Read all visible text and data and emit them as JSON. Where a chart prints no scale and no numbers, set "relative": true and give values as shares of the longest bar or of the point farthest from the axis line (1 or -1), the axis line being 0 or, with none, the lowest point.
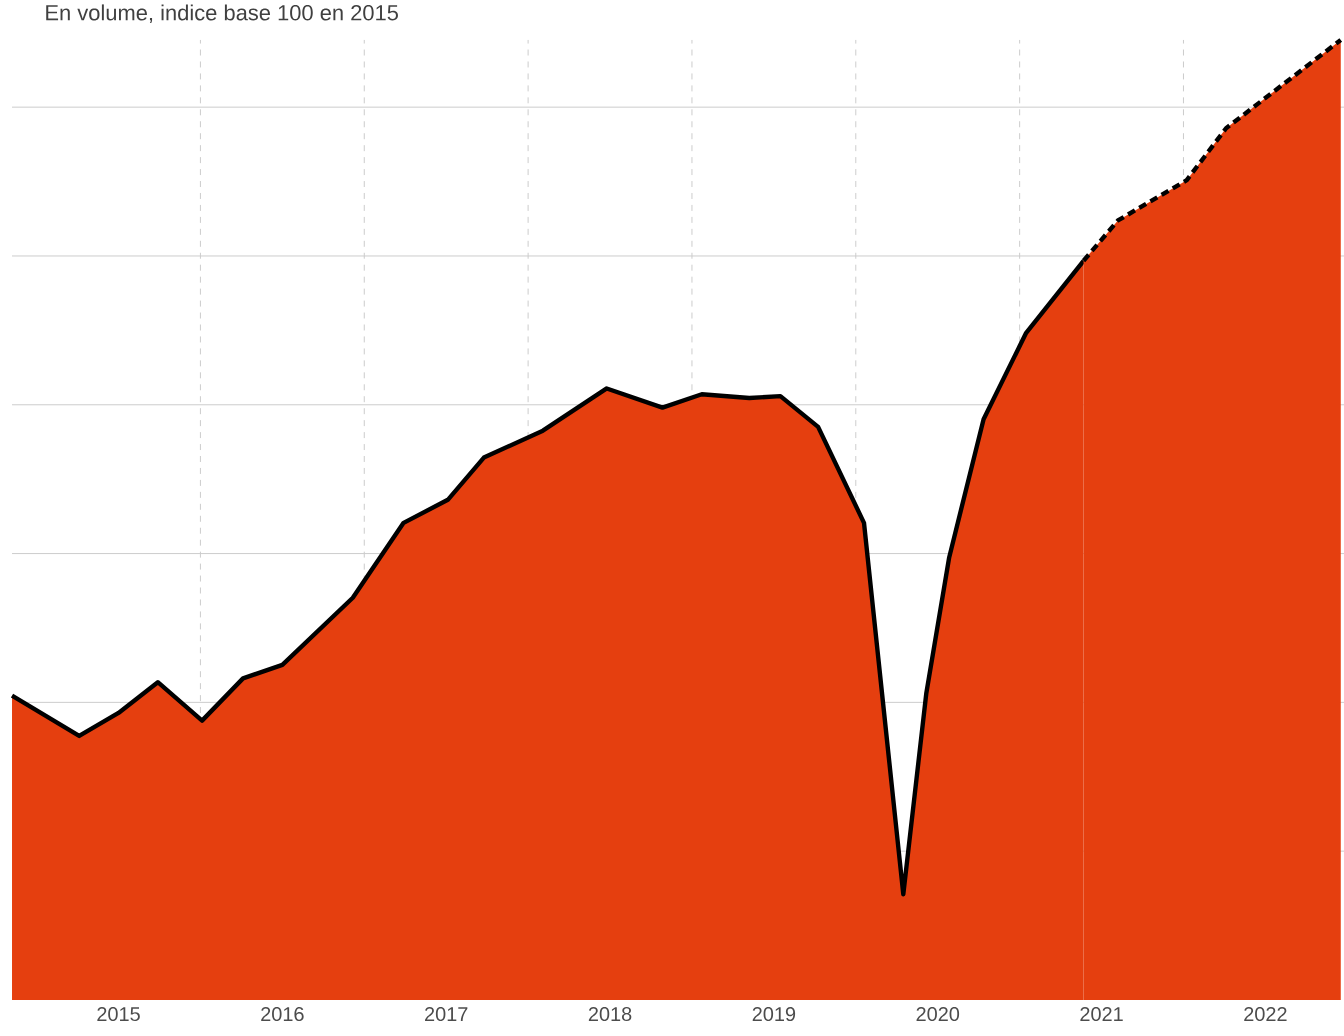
{
  "chart_data": {
    "type": "area",
    "title": "En volume, indice base 100 en 2015",
    "relative": true,
    "grid": true,
    "xlim": [
      2014.85,
      2022.98
    ],
    "xticks": [
      {
        "value": 2015.5,
        "label": "2015"
      },
      {
        "value": 2016,
        "label": null
      },
      {
        "value": 2016.5,
        "label": "2016"
      },
      {
        "value": 2017,
        "label": null
      },
      {
        "value": 2017.5,
        "label": "2017"
      },
      {
        "value": 2018,
        "label": null
      },
      {
        "value": 2018.5,
        "label": "2018"
      },
      {
        "value": 2019,
        "label": null
      },
      {
        "value": 2019.5,
        "label": "2019"
      },
      {
        "value": 2020,
        "label": null
      },
      {
        "value": 2020.5,
        "label": "2020"
      },
      {
        "value": 2021,
        "label": null
      },
      {
        "value": 2021.5,
        "label": "2021"
      },
      {
        "value": 2022,
        "label": null
      },
      {
        "value": 2022.5,
        "label": "2022"
      }
    ],
    "tick_labels": "x",
    "series": [
      {
        "color": "#e53f0f",
        "line_style": "solid",
        "x": [
          2014.85,
          2015.26,
          2015.5,
          2015.74,
          2016.01,
          2016.26,
          2016.5,
          2016.93,
          2017.24,
          2017.51,
          2017.73,
          2018.09,
          2018.48,
          2018.82,
          2019.06,
          2019.35,
          2019.54,
          2019.77,
          2020.05,
          2020.29,
          2020.43,
          2020.57,
          2020.78,
          2021.04,
          2021.39
        ],
        "values": [
          0.317,
          0.275,
          0.299,
          0.331,
          0.291,
          0.335,
          0.349,
          0.419,
          0.497,
          0.521,
          0.565,
          0.593,
          0.637,
          0.617,
          0.631,
          0.627,
          0.629,
          0.597,
          0.497,
          0.11,
          0.319,
          0.461,
          0.605,
          0.695,
          0.77
        ]
      },
      {
        "color": "#e53f0f",
        "line_style": "dashed",
        "x": [
          2021.39,
          2021.6,
          2022.02,
          2022.26,
          2022.96
        ],
        "values": [
          0.77,
          0.812,
          0.854,
          0.908,
          1.0
        ]
      }
    ]
  }
}
